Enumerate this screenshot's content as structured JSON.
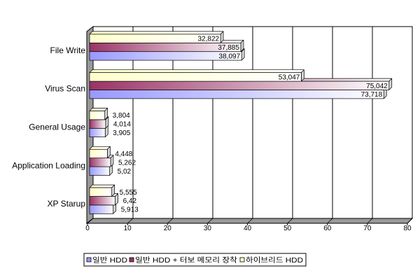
{
  "chart_data": {
    "type": "bar",
    "orientation": "horizontal",
    "three_d": true,
    "categories": [
      "File Write",
      "Virus Scan",
      "General Usage",
      "Application Loading",
      "XP Starup"
    ],
    "series": [
      {
        "name": "일반 HDD",
        "color": "#9999ff",
        "values": [
          38.097,
          73.718,
          3.905,
          5.02,
          5.913
        ],
        "data_labels": [
          "38,097",
          "73,718",
          "3,905",
          "5,02",
          "5,913"
        ]
      },
      {
        "name": "일반 HDD + 터보 메모리 장착",
        "color": "#993366",
        "values": [
          37.885,
          75.042,
          4.014,
          5.262,
          6.42
        ],
        "data_labels": [
          "37,885",
          "75,042",
          "4,014",
          "5,262",
          "6,42"
        ]
      },
      {
        "name": "하이브리드 HDD",
        "color": "#ffffcc",
        "values": [
          32.822,
          53.047,
          3.804,
          4.448,
          5.555
        ],
        "data_labels": [
          "32,822",
          "53,047",
          "3,804",
          "4,448",
          "5,555"
        ]
      }
    ],
    "xlim": [
      0,
      80
    ],
    "xticks": [
      0,
      10,
      20,
      30,
      40,
      50,
      60,
      70,
      80
    ],
    "grid": true,
    "legend_position": "bottom"
  }
}
